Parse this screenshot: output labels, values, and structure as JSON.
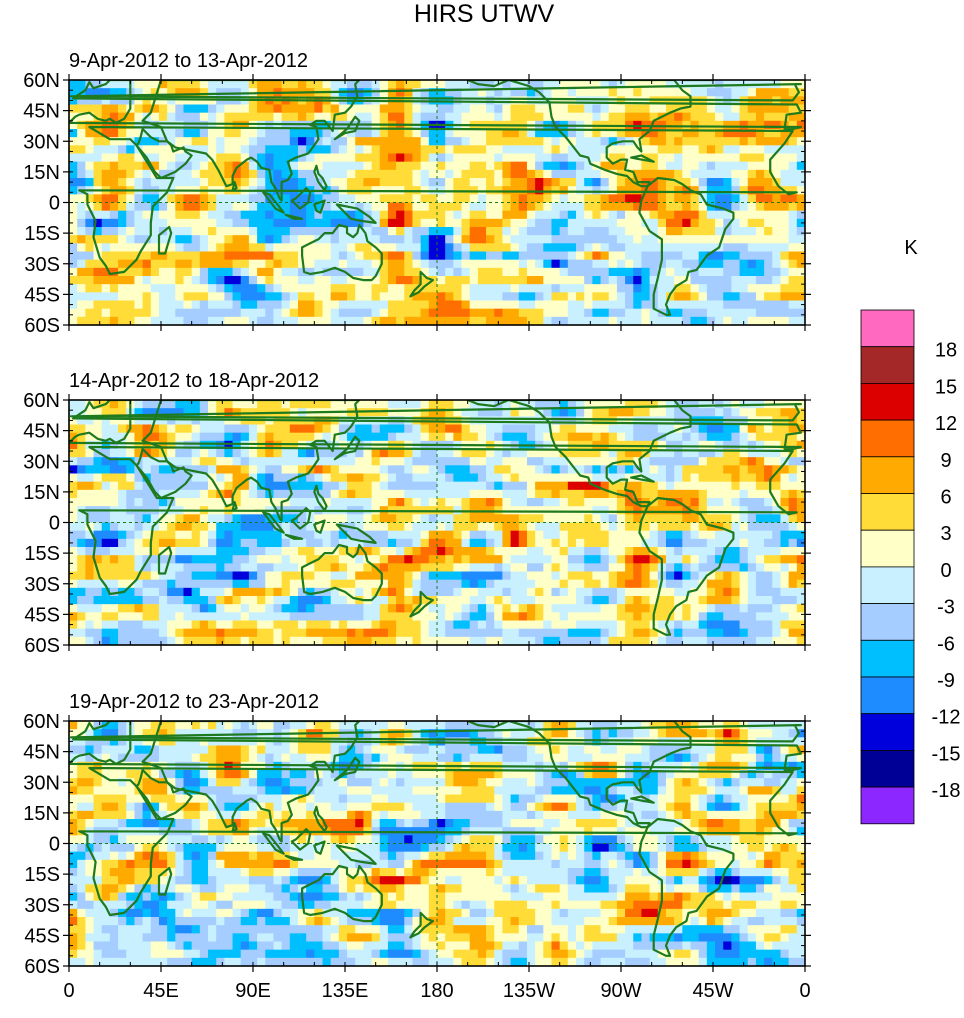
{
  "chart_data": {
    "type": "heatmap",
    "title": "HIRS UTWV",
    "variable": "UTWV",
    "units_label": "K",
    "panels": [
      {
        "period": "9-Apr-2012 to 13-Apr-2012"
      },
      {
        "period": "14-Apr-2012 to 18-Apr-2012"
      },
      {
        "period": "19-Apr-2012 to 23-Apr-2012"
      }
    ],
    "lat_range": [
      -60,
      60
    ],
    "lon_range": [
      0,
      360
    ],
    "y_ticks": [
      "60N",
      "45N",
      "30N",
      "15N",
      "0",
      "15S",
      "30S",
      "45S",
      "60S"
    ],
    "y_tick_values": [
      60,
      45,
      30,
      15,
      0,
      -15,
      -30,
      -45,
      -60
    ],
    "x_ticks": [
      "0",
      "45E",
      "90E",
      "135E",
      "180",
      "135W",
      "90W",
      "45W",
      "0"
    ],
    "x_tick_values": [
      0,
      45,
      90,
      135,
      180,
      225,
      270,
      315,
      360
    ],
    "reference_lines": {
      "equator_lat": 0,
      "dateline_lon": 180
    },
    "colorbar": {
      "labels": [
        "18",
        "15",
        "12",
        "9",
        "6",
        "3",
        "0",
        "-3",
        "-6",
        "-9",
        "-12",
        "-15",
        "-18"
      ],
      "levels": [
        18,
        15,
        12,
        9,
        6,
        3,
        0,
        -3,
        -6,
        -9,
        -12,
        -15,
        -18
      ],
      "colors": [
        "#ff69c0",
        "#a52828",
        "#dc0000",
        "#ff6e00",
        "#ffaa00",
        "#ffdc37",
        "#ffffc8",
        "#c8f0ff",
        "#a5cdff",
        "#00bfff",
        "#1e8cff",
        "#0000dc",
        "#000096",
        "#8c28ff"
      ]
    }
  }
}
